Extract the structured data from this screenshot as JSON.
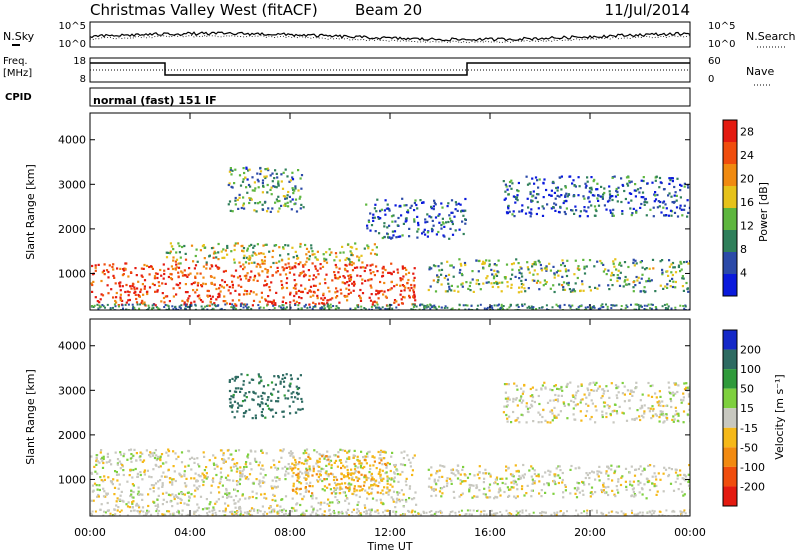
{
  "header": {
    "station": "Christmas Valley West (fitACF)",
    "beam": "Beam 20",
    "date": "11/Jul/2014"
  },
  "status_panels": {
    "nsky_label": "N.Sky",
    "nsearch_label": "N.Search",
    "noise_ticks": [
      "10^5",
      "10^0"
    ],
    "freq_label_line1": "Freq.",
    "freq_label_line2": "[MHz]",
    "freq_ticks": [
      "18",
      "8"
    ],
    "nave_label": "Nave",
    "nave_ticks": [
      "60",
      "0"
    ],
    "cpid_label": "CPID",
    "cpid_value": "normal (fast) 151 IF"
  },
  "chart_data": [
    {
      "type": "heatmap",
      "name": "power",
      "ylabel": "Slant Range [km]",
      "xlabel": "Time UT",
      "x_ticks": [
        "00:00",
        "04:00",
        "08:00",
        "12:00",
        "16:00",
        "20:00",
        "00:00"
      ],
      "xlim_hours": [
        0,
        24
      ],
      "y_ticks": [
        1000,
        2000,
        3000,
        4000
      ],
      "ylim": [
        180,
        4600
      ],
      "colorbar_label": "Power [dB]",
      "colorbar_ticks": [
        4,
        8,
        12,
        16,
        20,
        24,
        28
      ],
      "colorbar_range": [
        0,
        30
      ],
      "colorbar_colors": [
        "#0a1adc",
        "#2b4aa8",
        "#2f7f5a",
        "#5db63e",
        "#e6c21a",
        "#f08a10",
        "#f04d0d",
        "#e41a10"
      ],
      "echo_regions": [
        {
          "t_start": 0.0,
          "t_end": 13.0,
          "range_start": 300,
          "range_end": 1250,
          "power_db": 26
        },
        {
          "t_start": 3.0,
          "t_end": 11.5,
          "range_start": 1250,
          "range_end": 1700,
          "power_db": 16
        },
        {
          "t_start": 13.5,
          "t_end": 24.0,
          "range_start": 600,
          "range_end": 1350,
          "power_db": 12
        },
        {
          "t_start": 5.5,
          "t_end": 8.5,
          "range_start": 2400,
          "range_end": 3400,
          "power_db": 10
        },
        {
          "t_start": 16.5,
          "t_end": 24.0,
          "range_start": 2300,
          "range_end": 3200,
          "power_db": 6
        },
        {
          "t_start": 11.0,
          "t_end": 15.0,
          "range_start": 1800,
          "range_end": 2700,
          "power_db": 6
        }
      ]
    },
    {
      "type": "heatmap",
      "name": "velocity",
      "ylabel": "Slant Range [km]",
      "xlabel": "Time UT",
      "x_ticks": [
        "00:00",
        "04:00",
        "08:00",
        "12:00",
        "16:00",
        "20:00",
        "00:00"
      ],
      "xlim_hours": [
        0,
        24
      ],
      "y_ticks": [
        1000,
        2000,
        3000,
        4000
      ],
      "ylim": [
        180,
        4600
      ],
      "colorbar_label": "Velocity [m s⁻¹]",
      "colorbar_ticks": [
        200,
        100,
        50,
        15,
        -15,
        -50,
        -100,
        -200
      ],
      "colorbar_colors": [
        "#1428c8",
        "#2e6b62",
        "#2f9a3a",
        "#7ed03e",
        "#c8c8c0",
        "#f5b818",
        "#f28a10",
        "#f04d0d",
        "#e41a10"
      ],
      "echo_regions": [
        {
          "t_start": 0.0,
          "t_end": 13.0,
          "range_start": 300,
          "range_end": 1700,
          "velocity": 0
        },
        {
          "t_start": 8.0,
          "t_end": 12.0,
          "range_start": 700,
          "range_end": 1550,
          "velocity": -40
        },
        {
          "t_start": 13.5,
          "t_end": 24.0,
          "range_start": 600,
          "range_end": 1350,
          "velocity": 0
        },
        {
          "t_start": 16.5,
          "t_end": 24.0,
          "range_start": 2300,
          "range_end": 3200,
          "velocity": 0
        },
        {
          "t_start": 5.5,
          "t_end": 8.5,
          "range_start": 2400,
          "range_end": 3400,
          "velocity": 120
        }
      ]
    }
  ]
}
